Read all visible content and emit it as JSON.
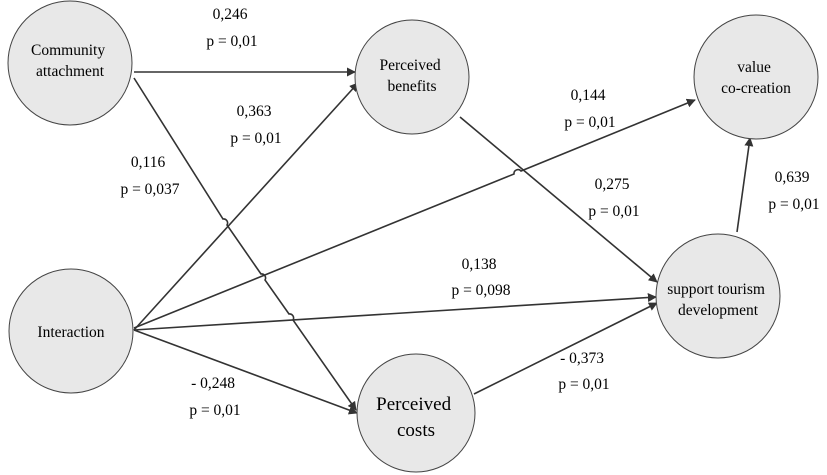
{
  "nodes": {
    "community": {
      "lines": [
        "Community",
        "attachment"
      ]
    },
    "benefits": {
      "lines": [
        "Perceived",
        "benefits"
      ]
    },
    "value": {
      "lines": [
        "value",
        "co-creation"
      ]
    },
    "interaction": {
      "lines": [
        "Interaction"
      ]
    },
    "costs": {
      "lines": [
        "Perceived",
        "costs"
      ]
    },
    "support": {
      "lines": [
        "support tourism",
        "development"
      ]
    }
  },
  "paths": {
    "community_benefits": {
      "coef": "0,246",
      "p": "p = 0,01"
    },
    "interaction_benefits": {
      "coef": "0,363",
      "p": "p = 0,01"
    },
    "community_costs": {
      "coef": "0,116",
      "p": "p = 0,037"
    },
    "interaction_value": {
      "coef": "0,144",
      "p": "p = 0,01"
    },
    "benefits_support": {
      "coef": "0,275",
      "p": "p = 0,01"
    },
    "support_value": {
      "coef": "0,639",
      "p": "p = 0,01"
    },
    "interaction_support": {
      "coef": "0,138",
      "p": "p = 0,098"
    },
    "interaction_costs": {
      "coef": "- 0,248",
      "p": "p = 0,01"
    },
    "costs_support": {
      "coef": "- 0,373",
      "p": "p = 0,01"
    }
  },
  "colors": {
    "node_fill": "#e8e8e8",
    "node_stroke": "#444444",
    "edge": "#333333"
  }
}
